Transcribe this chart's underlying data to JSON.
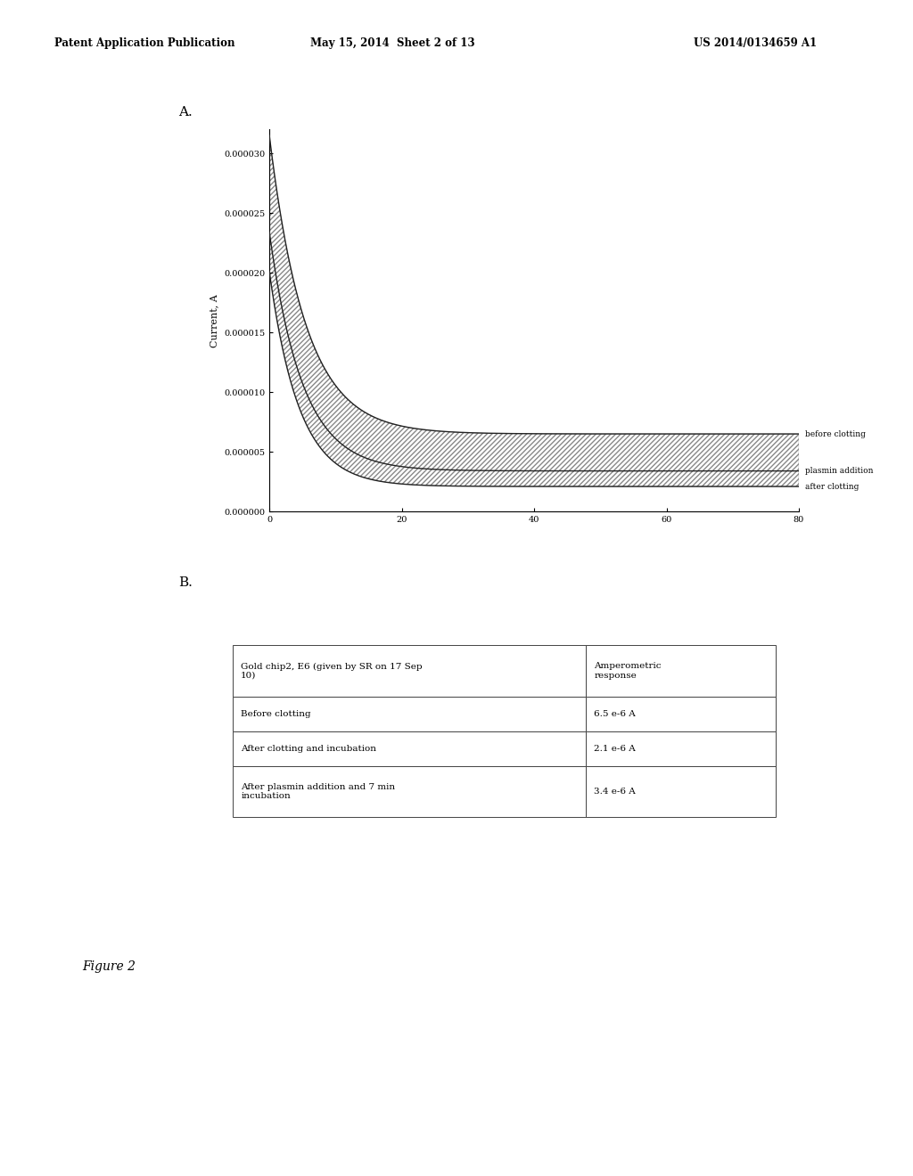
{
  "header_left": "Patent Application Publication",
  "header_mid": "May 15, 2014  Sheet 2 of 13",
  "header_right": "US 2014/0134659 A1",
  "panel_A_label": "A.",
  "panel_B_label": "B.",
  "figure_label": "Figure 2",
  "ylabel": "Current, A",
  "xlim": [
    0,
    80
  ],
  "ylim": [
    0,
    3.2e-05
  ],
  "xticks": [
    0,
    20,
    40,
    60,
    80
  ],
  "yticks": [
    0.0,
    5e-06,
    1e-05,
    1.5e-05,
    2e-05,
    2.5e-05,
    3e-05
  ],
  "ytick_labels": [
    "0.000000",
    "0.000005",
    "0.000010",
    "0.000015",
    "0.000020",
    "0.000025",
    "0.000030"
  ],
  "curve_before_clotting_label": "before clotting",
  "curve_plasmin_label": "plasmin addition",
  "curve_after_clotting_label": "after clotting",
  "curve_color": "#222222",
  "table_col1_header": "Gold chip2, E6 (given by SR on 17 Sep\n10)",
  "table_col2_header": "Amperometric\nresponse",
  "table_rows": [
    [
      "Before clotting",
      "6.5 e-6 A"
    ],
    [
      "After clotting and incubation",
      "2.1 e-6 A"
    ],
    [
      "After plasmin addition and 7 min\nincubation",
      "3.4 e-6 A"
    ]
  ],
  "background_color": "#ffffff",
  "text_color": "#000000"
}
